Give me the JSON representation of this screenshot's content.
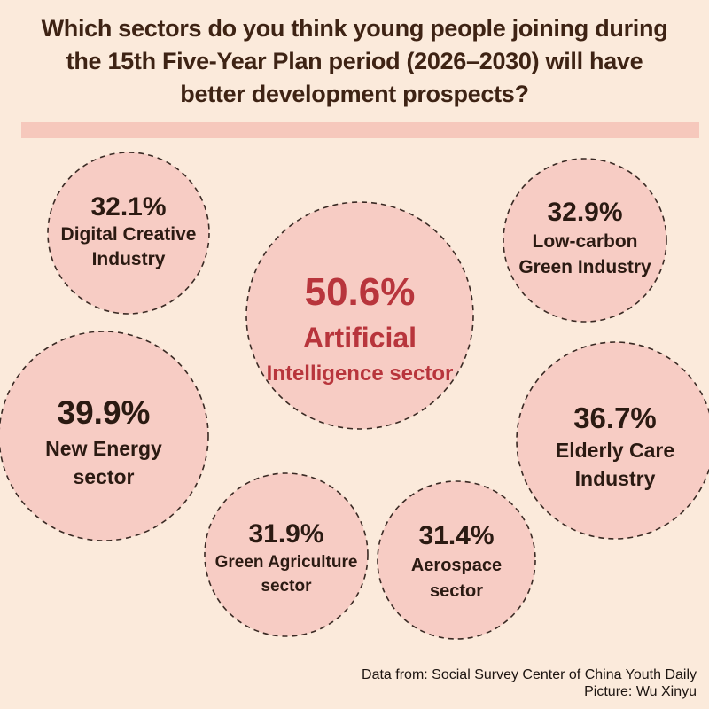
{
  "title": {
    "line1": "Which sectors do you think young people joining during",
    "line2": "the 15th Five-Year Plan period (2026–2030) will have",
    "line3": "better development prospects?"
  },
  "chart_data": {
    "type": "bubble",
    "title": "Which sectors do you think young people joining during the 15th Five-Year Plan period (2026–2030) will have better development prospects?",
    "unit": "%",
    "categories": [
      "Digital Creative Industry",
      "Low-carbon Green Industry",
      "Artificial Intelligence sector",
      "New Energy sector",
      "Elderly Care Industry",
      "Green Agriculture sector",
      "Aerospace sector"
    ],
    "values": [
      32.1,
      32.9,
      50.6,
      39.9,
      36.7,
      31.9,
      31.4
    ],
    "bubbles": [
      {
        "id": "digital-creative",
        "value": 32.1,
        "value_label": "32.1%",
        "label_lines": [
          "Digital Creative",
          "Industry"
        ],
        "highlight": false
      },
      {
        "id": "low-carbon-green",
        "value": 32.9,
        "value_label": "32.9%",
        "label_lines": [
          "Low-carbon",
          "Green Industry"
        ],
        "highlight": false
      },
      {
        "id": "artificial-intelligence",
        "value": 50.6,
        "value_label": "50.6%",
        "label_lines": [
          "Artificial",
          "Intelligence sector"
        ],
        "highlight": true
      },
      {
        "id": "new-energy",
        "value": 39.9,
        "value_label": "39.9%",
        "label_lines": [
          "New Energy",
          "sector"
        ],
        "highlight": false
      },
      {
        "id": "elderly-care",
        "value": 36.7,
        "value_label": "36.7%",
        "label_lines": [
          "Elderly Care",
          "Industry"
        ],
        "highlight": false
      },
      {
        "id": "green-agriculture",
        "value": 31.9,
        "value_label": "31.9%",
        "label_lines": [
          "Green Agriculture",
          "sector"
        ],
        "highlight": false
      },
      {
        "id": "aerospace",
        "value": 31.4,
        "value_label": "31.4%",
        "label_lines": [
          "Aerospace",
          "sector"
        ],
        "highlight": false
      }
    ]
  },
  "colors": {
    "background": "#fbeadb",
    "bubble_fill": "#f7ccc4",
    "highlight_text": "#b8353c",
    "text": "#2b1a12"
  },
  "footer": {
    "source": "Data from: Social Survey Center of China Youth Daily",
    "credit": "Picture: Wu Xinyu"
  }
}
